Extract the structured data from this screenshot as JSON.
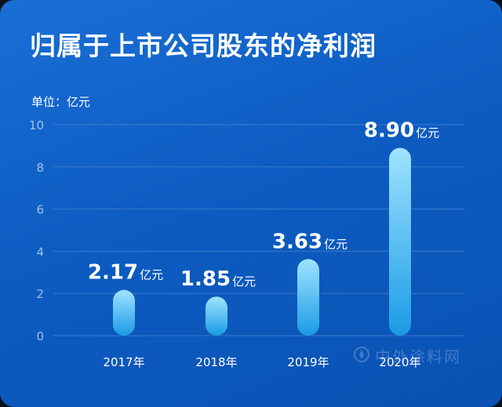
{
  "header": {
    "title": "归属于上市公司股东的净利润",
    "unit_label": "单位：亿元"
  },
  "watermark": {
    "text": "中外涂料网",
    "icon": "drop-logo-icon"
  },
  "colors": {
    "background": "#0d5cc2",
    "bar_top": "#9fe3ff",
    "bar_bottom": "#1a9be6",
    "text": "#ffffff",
    "grid": "#5e95d8"
  },
  "chart_data": {
    "type": "bar",
    "title": "归属于上市公司股东的净利润",
    "ylabel": "单位：亿元",
    "categories": [
      "2017年",
      "2018年",
      "2019年",
      "2020年"
    ],
    "values": [
      2.17,
      1.85,
      3.63,
      8.9
    ],
    "data_labels": [
      {
        "number": "2.17",
        "unit": "亿元"
      },
      {
        "number": "1.85",
        "unit": "亿元"
      },
      {
        "number": "3.63",
        "unit": "亿元"
      },
      {
        "number": "8.90",
        "unit": "亿元"
      }
    ],
    "y_ticks": [
      "0",
      "2",
      "4",
      "6",
      "8",
      "10"
    ],
    "ylim": [
      0,
      10
    ],
    "grid": true
  }
}
